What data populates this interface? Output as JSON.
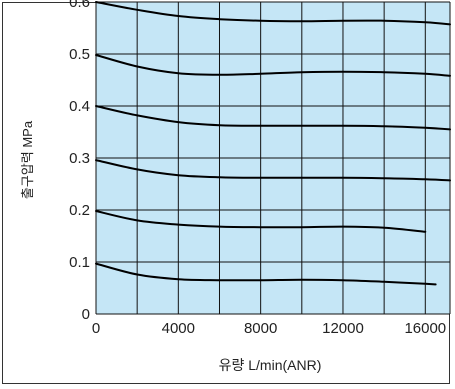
{
  "chart_data": {
    "type": "line",
    "title": "",
    "xlabel": "유량 L/min(ANR)",
    "ylabel": "출구압력 MPa",
    "xlim": [
      0,
      17200
    ],
    "ylim": [
      0,
      0.6
    ],
    "x_ticks": [
      0,
      4000,
      8000,
      12000,
      16000
    ],
    "x_tick_labels": [
      "0",
      "4000",
      "8000",
      "12000",
      "16000"
    ],
    "y_ticks": [
      0,
      0.1,
      0.2,
      0.3,
      0.4,
      0.5,
      0.6
    ],
    "y_tick_labels": [
      "0",
      "0.1",
      "0.2",
      "0.3",
      "0.4",
      "0.5",
      "0.6"
    ],
    "x_grid_step": 2000,
    "grid": true,
    "colors": {
      "plot_background": "#c5e6f6",
      "grid": "#111111",
      "line": "#000000"
    },
    "series": [
      {
        "x": [
          0,
          2000,
          4000,
          6000,
          8000,
          10000,
          12000,
          14000,
          16000,
          17200
        ],
        "y": [
          0.6,
          0.585,
          0.573,
          0.567,
          0.564,
          0.563,
          0.564,
          0.564,
          0.561,
          0.557
        ]
      },
      {
        "x": [
          0,
          2000,
          4000,
          6000,
          8000,
          10000,
          12000,
          14000,
          16000,
          17200
        ],
        "y": [
          0.498,
          0.476,
          0.463,
          0.46,
          0.462,
          0.465,
          0.466,
          0.465,
          0.462,
          0.458
        ]
      },
      {
        "x": [
          0,
          2000,
          4000,
          6000,
          8000,
          10000,
          12000,
          14000,
          16000,
          17200
        ],
        "y": [
          0.4,
          0.382,
          0.369,
          0.363,
          0.362,
          0.362,
          0.362,
          0.361,
          0.358,
          0.355
        ]
      },
      {
        "x": [
          0,
          2000,
          4000,
          6000,
          8000,
          10000,
          12000,
          14000,
          16000,
          17200
        ],
        "y": [
          0.296,
          0.278,
          0.267,
          0.263,
          0.262,
          0.262,
          0.262,
          0.261,
          0.259,
          0.257
        ]
      },
      {
        "x": [
          0,
          2000,
          4000,
          6000,
          8000,
          10000,
          12000,
          14000,
          16000
        ],
        "y": [
          0.198,
          0.18,
          0.172,
          0.168,
          0.167,
          0.167,
          0.168,
          0.166,
          0.158
        ]
      },
      {
        "x": [
          0,
          2000,
          4000,
          6000,
          8000,
          10000,
          12000,
          14000,
          16000,
          16500
        ],
        "y": [
          0.097,
          0.076,
          0.067,
          0.065,
          0.065,
          0.066,
          0.065,
          0.062,
          0.058,
          0.057
        ]
      }
    ]
  }
}
